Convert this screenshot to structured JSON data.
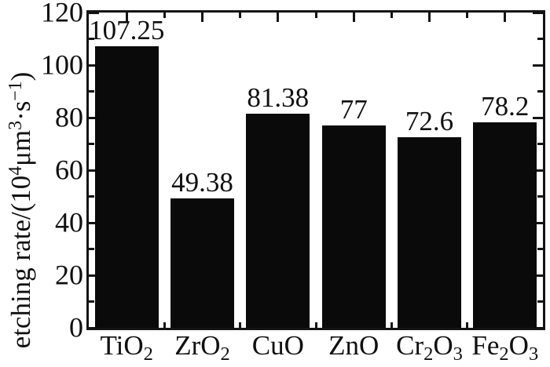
{
  "colors": {
    "background": "#ffffff",
    "bar": "#0a0a0a",
    "axis": "#141414",
    "text": "#101010"
  },
  "chart_data": {
    "type": "bar",
    "title": "",
    "xlabel": "",
    "ylabel": "etching rate/(10⁴μm³·s⁻¹)",
    "ylabel_parts": [
      {
        "t": "etching rate/(10"
      },
      {
        "sup": "4"
      },
      {
        "t": "μm"
      },
      {
        "sup": "3"
      },
      {
        "t": "·s"
      },
      {
        "sup": "−1"
      },
      {
        "t": ")"
      }
    ],
    "categories": [
      "TiO2",
      "ZrO2",
      "CuO",
      "ZnO",
      "Cr2O3",
      "Fe2O3"
    ],
    "values": [
      107.25,
      49.38,
      81.38,
      77,
      72.6,
      78.2
    ],
    "value_labels": [
      "107.25",
      "49.38",
      "81.38",
      "77",
      "72.6",
      "78.2"
    ],
    "ylim": [
      0,
      120
    ],
    "yticks": [
      0,
      20,
      40,
      60,
      80,
      100,
      120
    ],
    "yminorticks": [
      10,
      30,
      50,
      70,
      90,
      110
    ],
    "grid": false,
    "legend": "none",
    "frame": "box",
    "tick_direction": "in",
    "bar_width_fraction": 0.84
  }
}
